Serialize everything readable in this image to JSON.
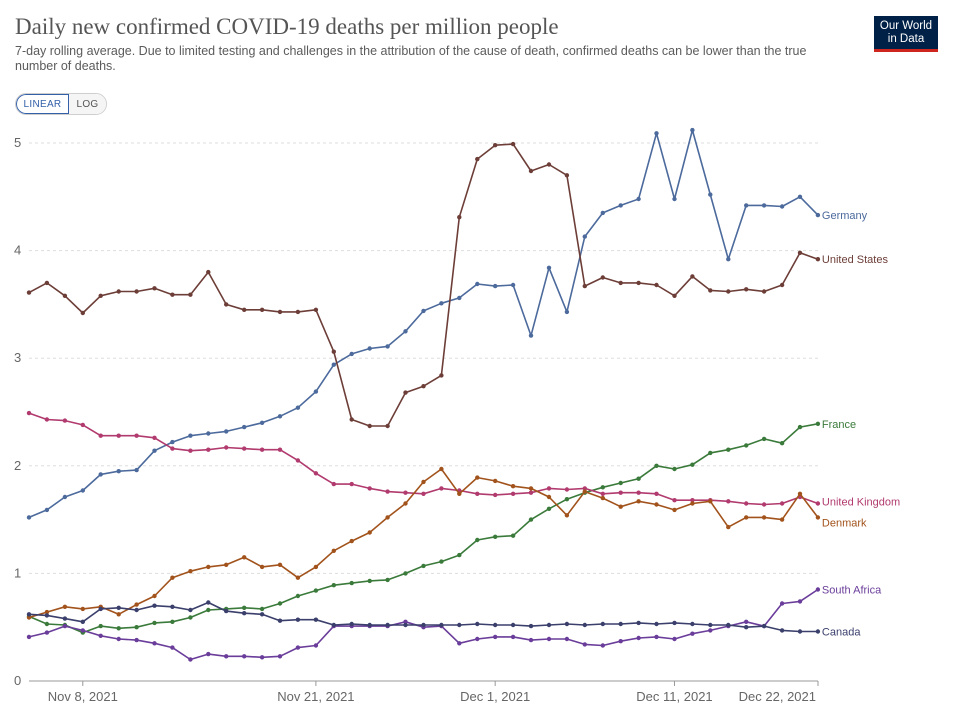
{
  "header": {
    "title": "Daily new confirmed COVID-19 deaths per million people",
    "subtitle": "7-day rolling average. Due to limited testing and challenges in the attribution of the cause of death, confirmed deaths can be lower than the true number of deaths.",
    "logo_line1": "Our World",
    "logo_line2": "in Data"
  },
  "scale_toggle": {
    "linear": "LINEAR",
    "log": "LOG",
    "selected": "LINEAR"
  },
  "colors": {
    "accent": "#3360a9",
    "logo_bg": "#002147",
    "logo_bar": "#ce261e"
  },
  "chart_data": {
    "type": "line",
    "title": "Daily new confirmed COVID-19 deaths per million people",
    "scale": "linear",
    "ylim": [
      0,
      5
    ],
    "yticks": [
      0,
      1,
      2,
      3,
      4,
      5
    ],
    "grid": "horizontal dashed",
    "legend": "inline labels at right end of lines",
    "x_start": "2021-11-05",
    "x_end": "2021-12-28",
    "xticks": [
      "Nov 8, 2021",
      "Nov 21, 2021",
      "Dec 1, 2021",
      "Dec 11, 2021",
      "Dec 22, 2021"
    ],
    "series": [
      {
        "name": "Germany",
        "color": "#4c6a9c",
        "values": [
          1.52,
          1.59,
          1.71,
          1.77,
          1.92,
          1.95,
          1.96,
          2.14,
          2.22,
          2.28,
          2.3,
          2.32,
          2.36,
          2.4,
          2.46,
          2.54,
          2.69,
          2.94,
          3.04,
          3.09,
          3.11,
          3.25,
          3.44,
          3.51,
          3.56,
          3.69,
          3.67,
          3.68,
          3.21,
          3.84,
          3.43,
          4.13,
          4.35,
          4.42,
          4.48,
          5.09,
          4.48,
          5.12,
          4.52,
          3.92,
          4.42,
          4.42,
          4.41,
          4.5,
          4.33
        ]
      },
      {
        "name": "United States",
        "color": "#6d3e38",
        "values": [
          3.61,
          3.7,
          3.58,
          3.42,
          3.58,
          3.62,
          3.62,
          3.65,
          3.59,
          3.59,
          3.8,
          3.5,
          3.45,
          3.45,
          3.43,
          3.43,
          3.45,
          3.06,
          2.43,
          2.37,
          2.37,
          2.68,
          2.74,
          2.84,
          4.31,
          4.85,
          4.98,
          4.99,
          4.74,
          4.8,
          4.7,
          3.67,
          3.75,
          3.7,
          3.7,
          3.68,
          3.58,
          3.76,
          3.63,
          3.62,
          3.64,
          3.62,
          3.68,
          3.98,
          3.92
        ]
      },
      {
        "name": "France",
        "color": "#3a7a3a",
        "values": [
          0.6,
          0.53,
          0.52,
          0.45,
          0.51,
          0.49,
          0.5,
          0.54,
          0.55,
          0.59,
          0.66,
          0.67,
          0.68,
          0.67,
          0.72,
          0.79,
          0.84,
          0.89,
          0.91,
          0.93,
          0.94,
          1.0,
          1.07,
          1.11,
          1.17,
          1.31,
          1.34,
          1.35,
          1.5,
          1.6,
          1.69,
          1.75,
          1.8,
          1.84,
          1.88,
          2.0,
          1.97,
          2.01,
          2.12,
          2.15,
          2.19,
          2.25,
          2.21,
          2.36,
          2.39
        ]
      },
      {
        "name": "United Kingdom",
        "color": "#b13a6e",
        "values": [
          2.49,
          2.43,
          2.42,
          2.38,
          2.28,
          2.28,
          2.28,
          2.26,
          2.16,
          2.14,
          2.15,
          2.17,
          2.16,
          2.15,
          2.15,
          2.05,
          1.93,
          1.83,
          1.83,
          1.79,
          1.76,
          1.75,
          1.74,
          1.79,
          1.77,
          1.74,
          1.73,
          1.74,
          1.75,
          1.79,
          1.78,
          1.79,
          1.74,
          1.75,
          1.75,
          1.74,
          1.68,
          1.68,
          1.68,
          1.67,
          1.65,
          1.64,
          1.65,
          1.71,
          1.65
        ]
      },
      {
        "name": "Denmark",
        "color": "#a2531c",
        "values": [
          0.59,
          0.64,
          0.69,
          0.67,
          0.69,
          0.62,
          0.71,
          0.79,
          0.96,
          1.02,
          1.06,
          1.08,
          1.15,
          1.06,
          1.08,
          0.96,
          1.06,
          1.21,
          1.3,
          1.38,
          1.52,
          1.65,
          1.85,
          1.97,
          1.74,
          1.89,
          1.86,
          1.81,
          1.79,
          1.71,
          1.54,
          1.76,
          1.7,
          1.62,
          1.67,
          1.64,
          1.59,
          1.65,
          1.67,
          1.43,
          1.52,
          1.52,
          1.5,
          1.74,
          1.52
        ]
      },
      {
        "name": "South Africa",
        "color": "#6a3d9a",
        "values": [
          0.41,
          0.45,
          0.51,
          0.47,
          0.42,
          0.39,
          0.38,
          0.35,
          0.31,
          0.2,
          0.25,
          0.23,
          0.23,
          0.22,
          0.23,
          0.31,
          0.33,
          0.51,
          0.51,
          0.51,
          0.51,
          0.55,
          0.5,
          0.51,
          0.35,
          0.39,
          0.41,
          0.41,
          0.38,
          0.39,
          0.39,
          0.34,
          0.33,
          0.37,
          0.4,
          0.41,
          0.39,
          0.44,
          0.47,
          0.51,
          0.55,
          0.51,
          0.72,
          0.74,
          0.85
        ]
      },
      {
        "name": "Canada",
        "color": "#3a3f6b",
        "values": [
          0.62,
          0.61,
          0.58,
          0.55,
          0.67,
          0.68,
          0.66,
          0.7,
          0.69,
          0.66,
          0.73,
          0.65,
          0.63,
          0.62,
          0.56,
          0.57,
          0.57,
          0.52,
          0.53,
          0.52,
          0.52,
          0.52,
          0.52,
          0.52,
          0.52,
          0.53,
          0.52,
          0.52,
          0.51,
          0.52,
          0.53,
          0.52,
          0.53,
          0.53,
          0.54,
          0.53,
          0.54,
          0.53,
          0.52,
          0.52,
          0.5,
          0.51,
          0.47,
          0.46,
          0.46
        ]
      }
    ]
  }
}
